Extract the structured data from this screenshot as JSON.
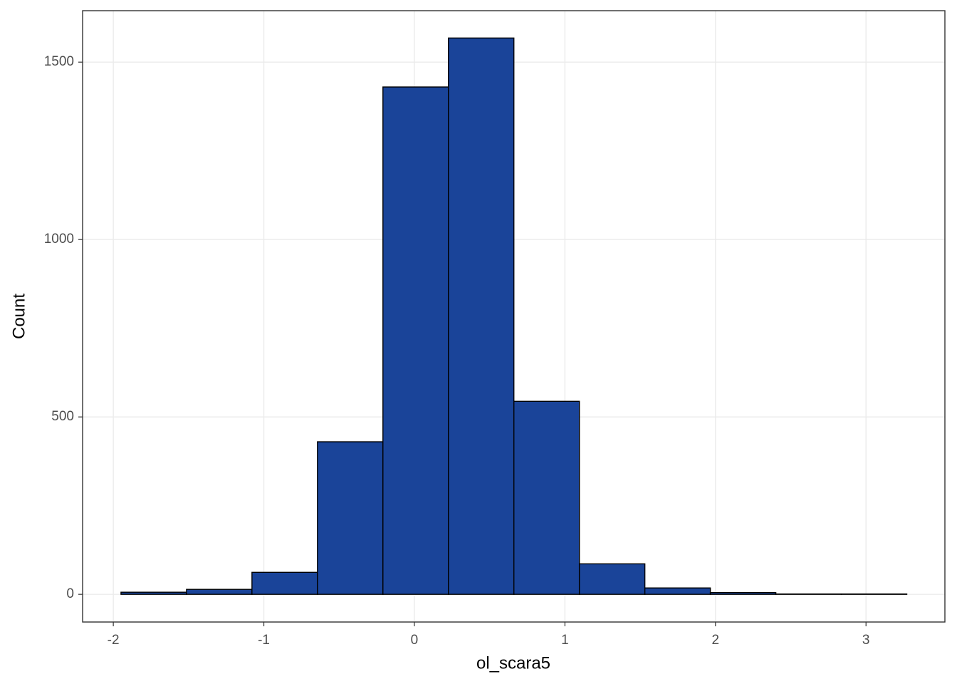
{
  "chart_data": {
    "type": "histogram",
    "x_label": "ol_scara5",
    "y_label": "Count",
    "bins": [
      -1.949,
      -1.514,
      -1.079,
      -0.644,
      -0.209,
      0.226,
      0.661,
      1.096,
      1.531,
      1.966,
      2.401,
      2.836,
      3.271
    ],
    "values": [
      6,
      14,
      62,
      430,
      1430,
      1568,
      544,
      86,
      18,
      5,
      1,
      1
    ],
    "color": "#1a4499",
    "edge_color": "#000000",
    "xlim": [
      -2.204,
      3.524
    ],
    "ylim": [
      -78,
      1645
    ],
    "xticks": [
      -2,
      -1,
      0,
      1,
      2,
      3
    ],
    "yticks": [
      0,
      500,
      1000,
      1500
    ],
    "grid": true
  }
}
